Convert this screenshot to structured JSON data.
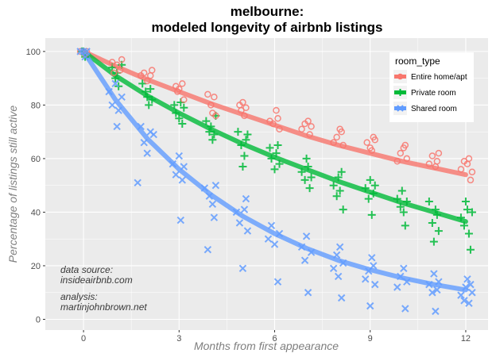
{
  "chart_data": {
    "type": "scatter",
    "title_line1": "melbourne:",
    "title_line2": "modeled longevity of airbnb listings",
    "xlabel": "Months from first appearance",
    "ylabel": "Percentage of listings still active",
    "xlim": [
      -1.2,
      12.7
    ],
    "ylim": [
      -4,
      105
    ],
    "x_ticks": [
      0,
      3,
      6,
      9,
      12
    ],
    "y_ticks": [
      0,
      20,
      40,
      60,
      80,
      100
    ],
    "grid": true,
    "legend": {
      "title": "room_type",
      "position": "top-right"
    },
    "annotations": [
      [
        "data source:",
        "insideairbnb.com"
      ],
      [
        "analysis:",
        "martinjohnbrown.net"
      ]
    ],
    "series": [
      {
        "name": "Entire home/apt",
        "marker": "circle",
        "color": "#F8766D",
        "fit": [
          [
            0,
            100
          ],
          [
            1,
            94.5
          ],
          [
            2,
            89.5
          ],
          [
            3,
            85
          ],
          [
            4,
            80.5
          ],
          [
            5,
            76.5
          ],
          [
            6,
            72.5
          ],
          [
            7,
            68.5
          ],
          [
            8,
            65
          ],
          [
            9,
            62
          ],
          [
            10,
            59
          ],
          [
            11,
            56.5
          ],
          [
            12,
            54
          ]
        ],
        "points": [
          [
            0,
            100
          ],
          [
            0.1,
            100
          ],
          [
            -0.1,
            100
          ],
          [
            0.05,
            99
          ],
          [
            0.9,
            96
          ],
          [
            1.05,
            95
          ],
          [
            1.15,
            93
          ],
          [
            0.95,
            92
          ],
          [
            1.2,
            97
          ],
          [
            1.8,
            91
          ],
          [
            1.9,
            92
          ],
          [
            2.0,
            89
          ],
          [
            2.1,
            91
          ],
          [
            2.15,
            93
          ],
          [
            2.9,
            87
          ],
          [
            2.95,
            85
          ],
          [
            3.0,
            86
          ],
          [
            3.1,
            88
          ],
          [
            3.15,
            82
          ],
          [
            3.9,
            84
          ],
          [
            4.0,
            80
          ],
          [
            4.05,
            77
          ],
          [
            4.1,
            83
          ],
          [
            4.15,
            76
          ],
          [
            4.9,
            80
          ],
          [
            4.95,
            78
          ],
          [
            5.0,
            81
          ],
          [
            5.05,
            76
          ],
          [
            5.1,
            79
          ],
          [
            5.85,
            74
          ],
          [
            5.95,
            73
          ],
          [
            6.05,
            78
          ],
          [
            6.1,
            75
          ],
          [
            6.15,
            71
          ],
          [
            6.85,
            71
          ],
          [
            6.95,
            73
          ],
          [
            7.05,
            74
          ],
          [
            7.1,
            69
          ],
          [
            7.15,
            72
          ],
          [
            7.85,
            66
          ],
          [
            7.95,
            68
          ],
          [
            8.05,
            71
          ],
          [
            8.1,
            70
          ],
          [
            8.15,
            65
          ],
          [
            8.9,
            66
          ],
          [
            9.0,
            64
          ],
          [
            9.05,
            63
          ],
          [
            9.1,
            68
          ],
          [
            9.15,
            67
          ],
          [
            9.85,
            59
          ],
          [
            9.95,
            62
          ],
          [
            10.05,
            64
          ],
          [
            10.1,
            65
          ],
          [
            10.15,
            60
          ],
          [
            10.85,
            58
          ],
          [
            10.95,
            61
          ],
          [
            11.05,
            57
          ],
          [
            11.1,
            59
          ],
          [
            11.15,
            62
          ],
          [
            11.85,
            56
          ],
          [
            11.95,
            59
          ],
          [
            12.05,
            58
          ],
          [
            12.1,
            60
          ],
          [
            12.15,
            52
          ],
          [
            12.2,
            55
          ]
        ]
      },
      {
        "name": "Private room",
        "marker": "plus",
        "color": "#00BA38",
        "fit": [
          [
            0,
            100
          ],
          [
            1,
            91
          ],
          [
            2,
            83.5
          ],
          [
            3,
            77
          ],
          [
            4,
            71
          ],
          [
            5,
            65.5
          ],
          [
            6,
            60.5
          ],
          [
            7,
            56
          ],
          [
            8,
            51.5
          ],
          [
            9,
            47.5
          ],
          [
            10,
            43.5
          ],
          [
            11,
            40
          ],
          [
            12,
            36.5
          ]
        ],
        "points": [
          [
            0,
            100
          ],
          [
            0.1,
            99
          ],
          [
            -0.05,
            100
          ],
          [
            0.05,
            98
          ],
          [
            0.9,
            94
          ],
          [
            1.0,
            90
          ],
          [
            1.05,
            92
          ],
          [
            1.1,
            87
          ],
          [
            1.2,
            95
          ],
          [
            1.85,
            88
          ],
          [
            1.95,
            85
          ],
          [
            2.0,
            83
          ],
          [
            2.05,
            80
          ],
          [
            2.1,
            86
          ],
          [
            2.15,
            82
          ],
          [
            2.85,
            80
          ],
          [
            2.9,
            77
          ],
          [
            3.0,
            75
          ],
          [
            3.05,
            81
          ],
          [
            3.1,
            73
          ],
          [
            3.15,
            79
          ],
          [
            3.85,
            74
          ],
          [
            3.95,
            70
          ],
          [
            4.0,
            72
          ],
          [
            4.05,
            67
          ],
          [
            4.1,
            69
          ],
          [
            4.15,
            76
          ],
          [
            4.85,
            70
          ],
          [
            4.95,
            65
          ],
          [
            5.0,
            57
          ],
          [
            5.05,
            61
          ],
          [
            5.1,
            67
          ],
          [
            5.15,
            69
          ],
          [
            5.85,
            64
          ],
          [
            5.9,
            60
          ],
          [
            6.0,
            56
          ],
          [
            6.05,
            62
          ],
          [
            6.1,
            65
          ],
          [
            6.15,
            58
          ],
          [
            6.85,
            55
          ],
          [
            6.95,
            52
          ],
          [
            7.0,
            60
          ],
          [
            7.05,
            57
          ],
          [
            7.1,
            49
          ],
          [
            7.15,
            53
          ],
          [
            7.85,
            50
          ],
          [
            7.95,
            46
          ],
          [
            8.0,
            53
          ],
          [
            8.05,
            48
          ],
          [
            8.1,
            55
          ],
          [
            8.15,
            41
          ],
          [
            8.85,
            49
          ],
          [
            8.95,
            45
          ],
          [
            9.0,
            52
          ],
          [
            9.05,
            39
          ],
          [
            9.1,
            47
          ],
          [
            9.15,
            50
          ],
          [
            9.85,
            45
          ],
          [
            9.95,
            42
          ],
          [
            10.0,
            48
          ],
          [
            10.05,
            40
          ],
          [
            10.1,
            35
          ],
          [
            10.15,
            44
          ],
          [
            10.85,
            44
          ],
          [
            10.95,
            36
          ],
          [
            11.0,
            29
          ],
          [
            11.05,
            41
          ],
          [
            11.1,
            39
          ],
          [
            11.15,
            33
          ],
          [
            11.85,
            38
          ],
          [
            11.95,
            35
          ],
          [
            12.0,
            44
          ],
          [
            12.05,
            41
          ],
          [
            12.1,
            32
          ],
          [
            12.15,
            26
          ],
          [
            12.2,
            40
          ]
        ]
      },
      {
        "name": "Shared room",
        "marker": "cross",
        "color": "#619CFF",
        "fit": [
          [
            0,
            100
          ],
          [
            1,
            82
          ],
          [
            2,
            67.5
          ],
          [
            3,
            56
          ],
          [
            4,
            46.5
          ],
          [
            5,
            38.5
          ],
          [
            6,
            32
          ],
          [
            7,
            26.5
          ],
          [
            8,
            22
          ],
          [
            9,
            18.5
          ],
          [
            10,
            15.5
          ],
          [
            11,
            13
          ],
          [
            12,
            11
          ]
        ],
        "points": [
          [
            0,
            100
          ],
          [
            0.1,
            100
          ],
          [
            -0.1,
            100
          ],
          [
            0.05,
            98
          ],
          [
            0.8,
            85
          ],
          [
            0.9,
            80
          ],
          [
            1.0,
            88
          ],
          [
            1.05,
            72
          ],
          [
            1.1,
            78
          ],
          [
            1.2,
            83
          ],
          [
            1.7,
            51
          ],
          [
            1.8,
            72
          ],
          [
            1.9,
            66
          ],
          [
            2.0,
            62
          ],
          [
            2.1,
            70
          ],
          [
            2.2,
            69
          ],
          [
            2.8,
            58
          ],
          [
            2.9,
            54
          ],
          [
            3.0,
            61
          ],
          [
            3.05,
            37
          ],
          [
            3.1,
            52
          ],
          [
            3.15,
            57
          ],
          [
            3.8,
            49
          ],
          [
            3.9,
            26
          ],
          [
            3.95,
            46
          ],
          [
            4.05,
            43
          ],
          [
            4.1,
            38
          ],
          [
            4.15,
            50
          ],
          [
            4.8,
            40
          ],
          [
            4.9,
            36
          ],
          [
            5.0,
            19
          ],
          [
            5.05,
            41
          ],
          [
            5.1,
            45
          ],
          [
            5.15,
            33
          ],
          [
            5.8,
            30
          ],
          [
            5.9,
            35
          ],
          [
            6.0,
            28
          ],
          [
            6.1,
            14
          ],
          [
            6.15,
            32
          ],
          [
            6.85,
            27
          ],
          [
            6.95,
            22
          ],
          [
            7.0,
            31
          ],
          [
            7.05,
            10
          ],
          [
            7.15,
            25
          ],
          [
            7.85,
            19
          ],
          [
            7.95,
            24
          ],
          [
            8.0,
            16
          ],
          [
            8.05,
            27
          ],
          [
            8.1,
            8
          ],
          [
            8.15,
            21
          ],
          [
            8.85,
            15
          ],
          [
            8.95,
            18
          ],
          [
            9.0,
            5
          ],
          [
            9.05,
            23
          ],
          [
            9.1,
            20
          ],
          [
            9.15,
            13
          ],
          [
            9.85,
            12
          ],
          [
            9.95,
            16
          ],
          [
            10.05,
            19
          ],
          [
            10.1,
            4
          ],
          [
            10.15,
            14
          ],
          [
            10.85,
            13
          ],
          [
            10.95,
            10
          ],
          [
            11.0,
            17
          ],
          [
            11.05,
            3
          ],
          [
            11.1,
            11
          ],
          [
            11.15,
            14
          ],
          [
            11.85,
            9
          ],
          [
            11.95,
            7
          ],
          [
            12.0,
            12
          ],
          [
            12.05,
            15
          ],
          [
            12.1,
            6
          ],
          [
            12.15,
            13
          ],
          [
            12.2,
            10
          ]
        ]
      }
    ]
  }
}
